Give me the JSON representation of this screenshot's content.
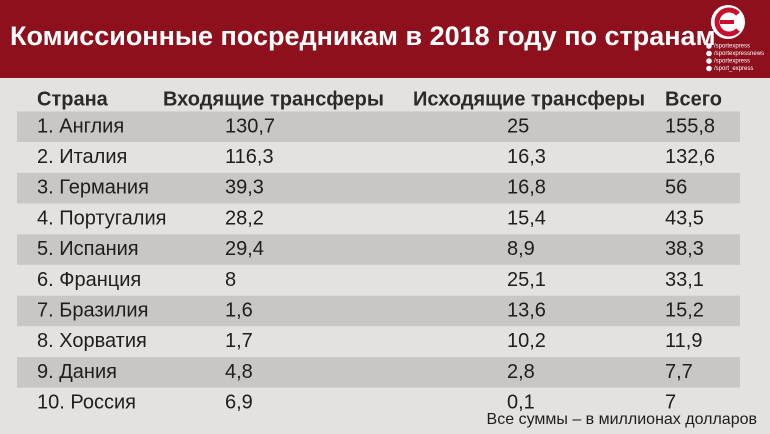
{
  "header": {
    "title": "Комиссионные посредникам в 2018 году по странам",
    "social": [
      "/sportexpress",
      "/sportexpressnews",
      "/sportexpress",
      "/sport_express"
    ]
  },
  "table": {
    "columns": [
      "Страна",
      "Входящие трансферы",
      "Исходящие трансферы",
      "Всего"
    ],
    "rows": [
      [
        "1. Англия",
        "130,7",
        "25",
        "155,8"
      ],
      [
        "2. Италия",
        "116,3",
        "16,3",
        "132,6"
      ],
      [
        "3. Германия",
        "39,3",
        "16,8",
        "56"
      ],
      [
        "4. Португалия",
        "28,2",
        "15,4",
        "43,5"
      ],
      [
        "5. Испания",
        "29,4",
        "8,9",
        "38,3"
      ],
      [
        "6. Франция",
        "8",
        "25,1",
        "33,1"
      ],
      [
        "7. Бразилия",
        "1,6",
        "13,6",
        "15,2"
      ],
      [
        "8. Хорватия",
        "1,7",
        "10,2",
        "11,9"
      ],
      [
        "9. Дания",
        "4,8",
        "2,8",
        "7,7"
      ],
      [
        "10. Россия",
        "6,9",
        "0,1",
        "7"
      ]
    ]
  },
  "footnote": "Все суммы – в миллионах долларов"
}
